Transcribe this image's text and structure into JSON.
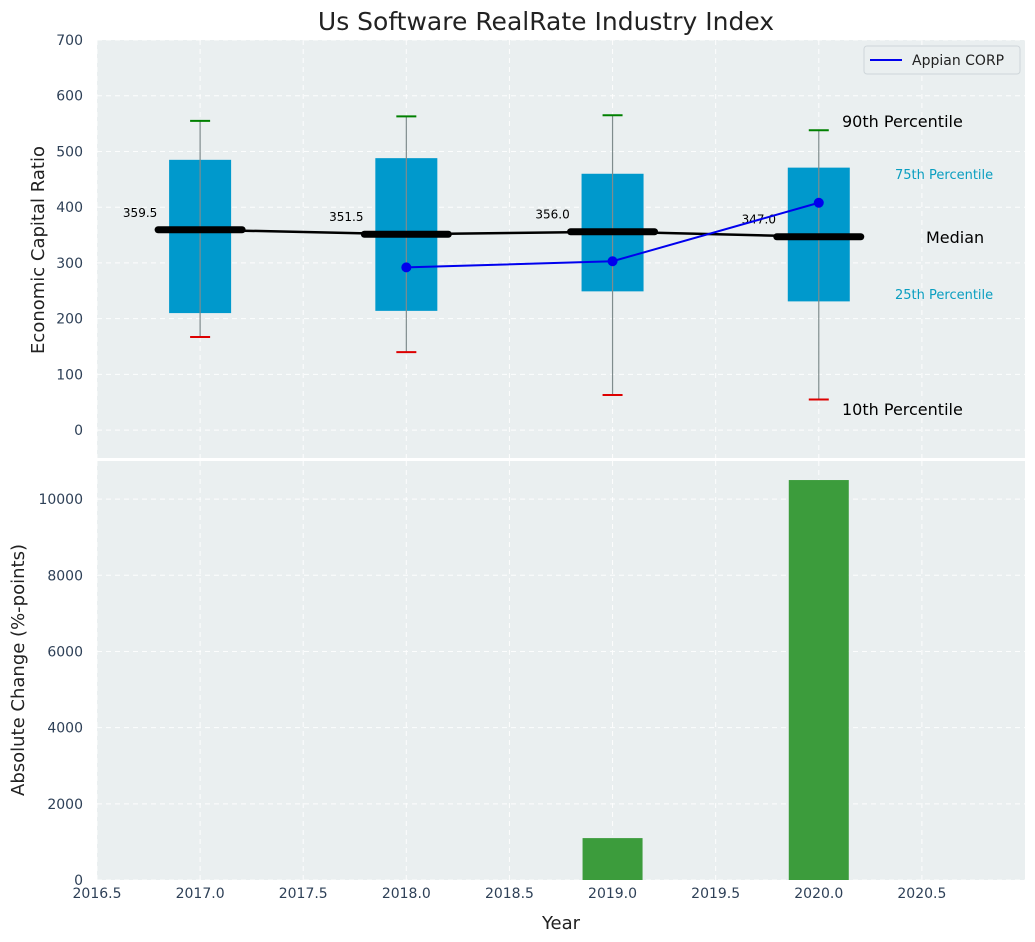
{
  "chart_data": {
    "title": "Us Software RealRate Industry Index",
    "xlabel": "Year",
    "xlim": [
      2016.5,
      2021.0
    ],
    "xticks": [
      2016.5,
      2017.0,
      2017.5,
      2018.0,
      2018.5,
      2019.0,
      2019.5,
      2020.0,
      2020.5
    ],
    "xtick_labels": [
      "2016.5",
      "2017.0",
      "2017.5",
      "2018.0",
      "2018.5",
      "2019.0",
      "2019.5",
      "2020.0",
      "2020.5"
    ],
    "top": {
      "type": "box",
      "ylabel": "Economic Capital Ratio",
      "ylim": [
        -50,
        700
      ],
      "yticks": [
        0,
        100,
        200,
        300,
        400,
        500,
        600,
        700
      ],
      "ytick_labels": [
        "0",
        "100",
        "200",
        "300",
        "400",
        "500",
        "600",
        "700"
      ],
      "boxes": [
        {
          "year": 2017,
          "p10": 167,
          "p25": 210,
          "median": 359.5,
          "p75": 485,
          "p90": 555,
          "median_label": "359.5"
        },
        {
          "year": 2018,
          "p10": 140,
          "p25": 214,
          "median": 351.5,
          "p75": 488,
          "p90": 563,
          "median_label": "351.5"
        },
        {
          "year": 2019,
          "p10": 63,
          "p25": 249,
          "median": 356.0,
          "p75": 460,
          "p90": 565,
          "median_label": "356.0"
        },
        {
          "year": 2020,
          "p10": 55,
          "p25": 231,
          "median": 347.0,
          "p75": 471,
          "p90": 538,
          "median_label": "347.0"
        }
      ],
      "series": [
        {
          "name": "Appian CORP",
          "color": "#0000ee",
          "x": [
            2018,
            2019,
            2020
          ],
          "y": [
            292,
            303,
            408
          ]
        }
      ],
      "annotations": {
        "p90": "90th Percentile",
        "p75": "75th Percentile",
        "median": "Median",
        "p25": "25th Percentile",
        "p10": "10th Percentile"
      },
      "legend": "top-right"
    },
    "bottom": {
      "type": "bar",
      "ylabel": "Absolute Change (%-points)",
      "ylim": [
        0,
        11000
      ],
      "yticks": [
        0,
        2000,
        4000,
        6000,
        8000,
        10000
      ],
      "ytick_labels": [
        "0",
        "2000",
        "4000",
        "6000",
        "8000",
        "10000"
      ],
      "bars": [
        {
          "year": 2019,
          "value": 1100
        },
        {
          "year": 2020,
          "value": 10500
        }
      ],
      "color": "#3c9c3c"
    },
    "grid": true,
    "colors": {
      "box": "#0099cc",
      "median": "#000000",
      "whisker_top": "#008000",
      "whisker_bottom": "#dd0000",
      "panel_bg": "#eaeff0"
    }
  }
}
